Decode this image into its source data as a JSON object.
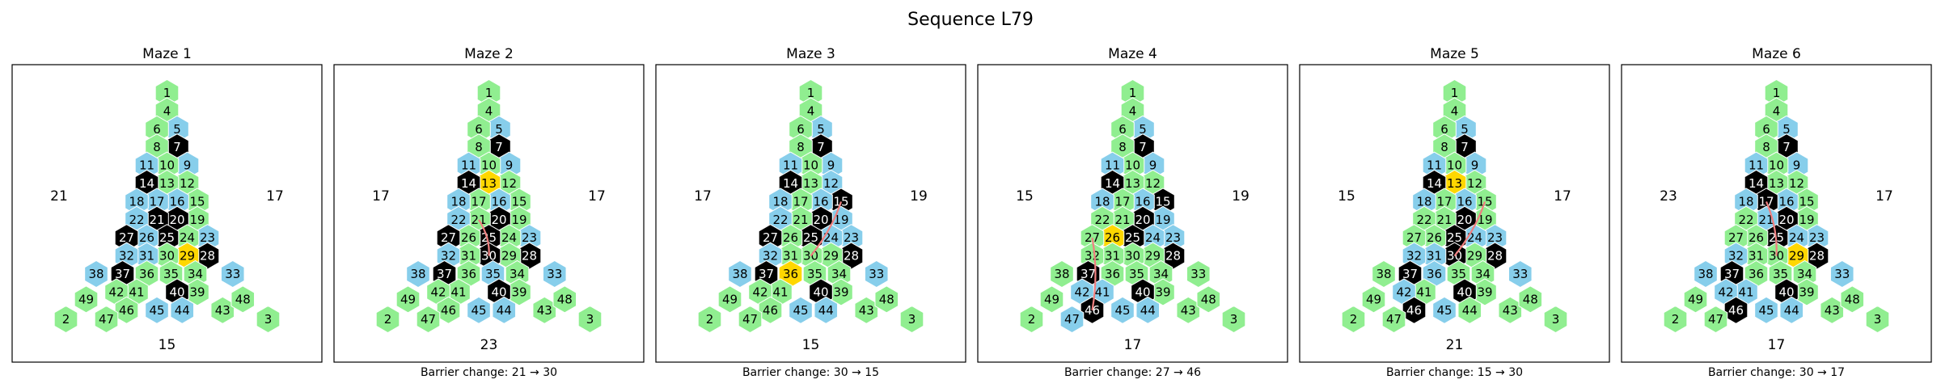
{
  "title": "Sequence L79",
  "colors": {
    "green": "#90EE90",
    "blue": "#87CEEB",
    "black": "#000000",
    "gold": "#FFD700",
    "barrier_line": "#F08080",
    "frame": "#000000"
  },
  "triangle_rows": [
    [
      1
    ],
    [
      4
    ],
    [
      6,
      5
    ],
    [
      8,
      7
    ],
    [
      11,
      10,
      9
    ],
    [
      14,
      13,
      12
    ],
    [
      18,
      17,
      16,
      15
    ],
    [
      22,
      21,
      20,
      19
    ],
    [
      27,
      26,
      25,
      24,
      23
    ],
    [
      32,
      31,
      30,
      29,
      28
    ],
    [
      38,
      37,
      36,
      35,
      34,
      33
    ],
    [
      42,
      41,
      40,
      39
    ],
    [
      49,
      46,
      45,
      44,
      43,
      48
    ],
    [
      2,
      47,
      3
    ]
  ],
  "panels": [
    {
      "title": "Maze 1",
      "left_label": "21",
      "right_label": "17",
      "bottom_label": "15",
      "caption": "",
      "goal": 29,
      "barrier": null,
      "blue": [
        5,
        9,
        11,
        16,
        17,
        18,
        22,
        23,
        26,
        31,
        32,
        33,
        38,
        44,
        45
      ],
      "black": [
        7,
        14,
        20,
        21,
        25,
        27,
        28,
        37,
        40
      ]
    },
    {
      "title": "Maze 2",
      "left_label": "17",
      "right_label": "17",
      "bottom_label": "23",
      "caption": "Barrier change: 21 → 30",
      "goal": 13,
      "barrier": [
        21,
        30
      ],
      "blue": [
        5,
        9,
        11,
        16,
        18,
        22,
        23,
        32,
        33,
        35,
        38,
        44,
        45
      ],
      "black": [
        7,
        14,
        20,
        25,
        27,
        28,
        30,
        37,
        40
      ]
    },
    {
      "title": "Maze 3",
      "left_label": "17",
      "right_label": "19",
      "bottom_label": "15",
      "caption": "Barrier change: 30 → 15",
      "goal": 36,
      "barrier": [
        30,
        15
      ],
      "blue": [
        5,
        9,
        11,
        12,
        16,
        18,
        19,
        22,
        23,
        24,
        32,
        33,
        38,
        44,
        45
      ],
      "black": [
        7,
        14,
        15,
        20,
        25,
        27,
        28,
        37,
        40
      ]
    },
    {
      "title": "Maze 4",
      "left_label": "15",
      "right_label": "19",
      "bottom_label": "17",
      "caption": "Barrier change: 27 → 46",
      "goal": 26,
      "barrier": [
        27,
        46
      ],
      "blue": [
        5,
        9,
        11,
        16,
        18,
        19,
        23,
        24,
        41,
        42,
        44,
        45,
        47
      ],
      "black": [
        7,
        14,
        15,
        20,
        25,
        28,
        37,
        40,
        46
      ]
    },
    {
      "title": "Maze 5",
      "left_label": "15",
      "right_label": "17",
      "bottom_label": "21",
      "caption": "Barrier change: 15 → 30",
      "goal": 13,
      "barrier": [
        15,
        30
      ],
      "blue": [
        5,
        9,
        11,
        16,
        18,
        23,
        24,
        31,
        32,
        33,
        36,
        42,
        45
      ],
      "black": [
        7,
        14,
        20,
        25,
        28,
        30,
        37,
        40,
        46
      ]
    },
    {
      "title": "Maze 6",
      "left_label": "23",
      "right_label": "17",
      "bottom_label": "17",
      "caption": "Barrier change: 30 → 17",
      "goal": 29,
      "barrier": [
        30,
        17
      ],
      "blue": [
        5,
        9,
        11,
        16,
        18,
        21,
        23,
        24,
        32,
        33,
        38,
        41,
        42,
        44,
        45
      ],
      "black": [
        7,
        14,
        17,
        20,
        25,
        28,
        37,
        40,
        46
      ]
    }
  ]
}
